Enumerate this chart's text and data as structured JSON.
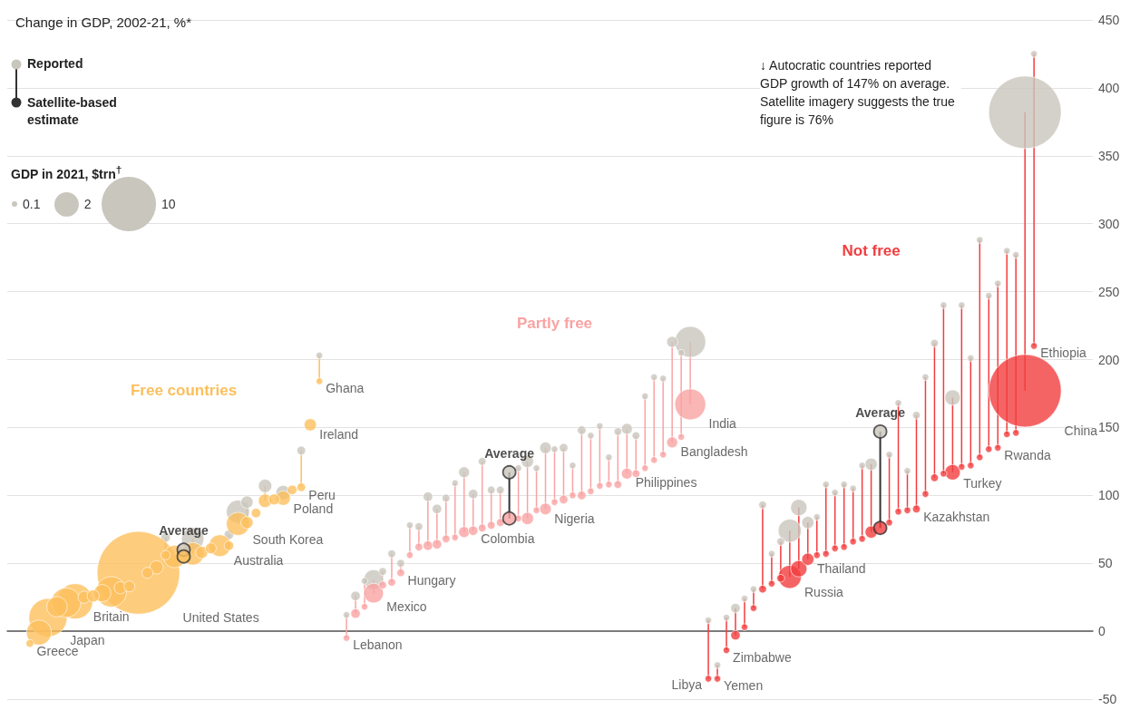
{
  "chart_data": {
    "type": "bubble",
    "title": "Change in GDP, 2002-21, %*",
    "legend_title": "GDP in 2021, $trn$^{†}$",
    "size_legend": [
      0.1,
      2,
      10
    ],
    "annotations": [
      "↓ Autocratic countries reported GDP growth of 147% on average. Satellite imagery suggests the true figure is 76%",
      "Free countries",
      "Partly free",
      "Not free",
      "Greece",
      "Japan",
      "Britain",
      "United States",
      "Average",
      "Australia",
      "South Korea",
      "Poland",
      "Peru",
      "Ireland",
      "Ghana",
      "Lebanon",
      "Mexico",
      "Hungary",
      "Colombia",
      "Average",
      "Nigeria",
      "Philippines",
      "Bangladesh",
      "India",
      "Libya",
      "Yemen",
      "Zimbabwe",
      "Russia",
      "Thailand",
      "Average",
      "Kazakhstan",
      "Turkey",
      "Rwanda",
      "China",
      "Ethiopia",
      "Satellite-based estimate"
    ],
    "categories": [
      null,
      null,
      null,
      null,
      null,
      null,
      null,
      null,
      null,
      null,
      null,
      null,
      null,
      null,
      null,
      null,
      null,
      null,
      null,
      null,
      null,
      null,
      null,
      null,
      null,
      null,
      null,
      null,
      null,
      null,
      null,
      null,
      null,
      null,
      null,
      null,
      null,
      null,
      null,
      null,
      null,
      null,
      null,
      null,
      null,
      null,
      null,
      null,
      null,
      null,
      null,
      null,
      null,
      null,
      null,
      null,
      null,
      null,
      null,
      null,
      null,
      null,
      null,
      null,
      null,
      null,
      null,
      null,
      null,
      null,
      null,
      null,
      null,
      null,
      null,
      null,
      null,
      null,
      null,
      null,
      null,
      null,
      null,
      null,
      null,
      null,
      null,
      null,
      null,
      null,
      null,
      null,
      null,
      null,
      null,
      null,
      null,
      null,
      null,
      null,
      null,
      null,
      null,
      null,
      null,
      null,
      null,
      null,
      null,
      null,
      null,
      null,
      null,
      null,
      null,
      null,
      null,
      null,
      null,
      null
    ],
    "series": [
      {
        "name": "Reported",
        "color": "#c9c6bd",
        "values": [
          null,
          null,
          null,
          null,
          null,
          null,
          null,
          null,
          null,
          null,
          null,
          null,
          null,
          null,
          null,
          null,
          null,
          69,
          null,
          null,
          68,
          null,
          null,
          null,
          71,
          88,
          95,
          null,
          107,
          null,
          102,
          null,
          133,
          null,
          203,
          null,
          null,
          12,
          26,
          37,
          38,
          44,
          57,
          50,
          78,
          77,
          99,
          90,
          98,
          109,
          117,
          101,
          125,
          104,
          104,
          null,
          120,
          125,
          120,
          135,
          134,
          135,
          122,
          148,
          144,
          151,
          128,
          147,
          149,
          144,
          173,
          187,
          186,
          213,
          205,
          213,
          null,
          8,
          -25,
          10,
          17,
          24,
          31,
          93,
          57,
          66,
          74,
          91,
          80,
          84,
          108,
          102,
          108,
          105,
          122,
          123,
          null,
          130,
          168,
          118,
          159,
          187,
          212,
          240,
          172,
          240,
          201,
          288,
          247,
          256,
          280,
          277,
          382,
          425,
          null,
          null,
          null,
          null,
          null,
          null
        ],
        "sizes": [
          null,
          null,
          null,
          null,
          null,
          null,
          null,
          null,
          null,
          null,
          null,
          null,
          null,
          null,
          null,
          null,
          null,
          0.3,
          null,
          null,
          1.7,
          null,
          null,
          null,
          0.3,
          1.8,
          0.5,
          null,
          0.6,
          null,
          0.7,
          null,
          0.25,
          null,
          0.15,
          null,
          null,
          0.15,
          0.3,
          0.15,
          1.3,
          0.2,
          0.2,
          0.2,
          0.15,
          0.2,
          0.3,
          0.3,
          0.2,
          0.15,
          0.4,
          0.3,
          0.2,
          0.2,
          0.2,
          null,
          0.15,
          0.5,
          0.15,
          0.45,
          0.15,
          0.25,
          0.15,
          0.25,
          0.15,
          0.15,
          0.15,
          0.2,
          0.4,
          0.2,
          0.15,
          0.15,
          0.15,
          0.4,
          0.15,
          3.2,
          null,
          0.15,
          0.15,
          0.15,
          0.3,
          0.15,
          0.15,
          0.2,
          0.15,
          0.2,
          1.8,
          0.9,
          0.5,
          0.15,
          0.15,
          0.15,
          0.15,
          0.15,
          0.15,
          0.5,
          null,
          0.15,
          0.15,
          0.15,
          0.2,
          0.15,
          0.2,
          0.15,
          0.8,
          0.15,
          0.15,
          0.15,
          0.15,
          0.15,
          0.15,
          0.15,
          17.7,
          0.15,
          null,
          null,
          null,
          null,
          null,
          null
        ]
      },
      {
        "values": [
          null,
          null,
          -9,
          -1,
          10,
          18,
          21,
          22,
          25,
          26,
          28,
          29,
          32,
          33,
          43,
          43,
          47,
          56,
          55,
          null,
          57,
          58,
          61,
          63,
          63,
          79,
          80,
          87,
          96,
          97,
          98,
          104,
          106,
          152,
          184,
          null,
          null,
          -5,
          13,
          18,
          28,
          34,
          36,
          43,
          56,
          62,
          63,
          64,
          68,
          69,
          73,
          74,
          76,
          78,
          80,
          null,
          83,
          83,
          89,
          90,
          95,
          97,
          100,
          100,
          103,
          107,
          108,
          108,
          116,
          116,
          120,
          126,
          130,
          139,
          143,
          167,
          null,
          -35,
          -35,
          -14,
          -3,
          3,
          17,
          31,
          35,
          39,
          40,
          46,
          53,
          56,
          57,
          61,
          62,
          66,
          68,
          73,
          null,
          80,
          88,
          89,
          90,
          101,
          113,
          116,
          117,
          121,
          122,
          128,
          134,
          135,
          145,
          146,
          177,
          210,
          null,
          null,
          null,
          null,
          null,
          null
        ],
        "sizes": [
          null,
          null,
          0.2,
          2.1,
          4.9,
          1.4,
          2.9,
          4.2,
          0.5,
          0.5,
          1.0,
          3.1,
          0.5,
          0.4,
          23,
          0.4,
          0.6,
          0.3,
          1.7,
          null,
          1.7,
          0.5,
          0.4,
          1.6,
          0.3,
          1.8,
          0.5,
          0.3,
          0.6,
          0.4,
          0.7,
          0.3,
          0.25,
          0.5,
          0.15,
          null,
          null,
          0.15,
          0.3,
          0.15,
          1.3,
          0.2,
          0.2,
          0.2,
          0.15,
          0.2,
          0.3,
          0.3,
          0.2,
          0.15,
          0.4,
          0.3,
          0.2,
          0.2,
          0.2,
          null,
          0.15,
          0.5,
          0.15,
          0.45,
          0.15,
          0.25,
          0.15,
          0.25,
          0.15,
          0.15,
          0.15,
          0.2,
          0.4,
          0.2,
          0.15,
          0.15,
          0.15,
          0.4,
          0.15,
          3.2,
          null,
          0.15,
          0.15,
          0.15,
          0.3,
          0.15,
          0.15,
          0.2,
          0.15,
          0.2,
          1.8,
          0.9,
          0.5,
          0.15,
          0.15,
          0.15,
          0.15,
          0.15,
          0.15,
          0.5,
          null,
          0.15,
          0.15,
          0.15,
          0.2,
          0.15,
          0.2,
          0.15,
          0.8,
          0.15,
          0.15,
          0.15,
          0.15,
          0.15,
          0.15,
          0.15,
          17.7,
          0.15,
          null,
          null,
          null,
          null,
          null,
          null
        ],
        "colors": [
          null,
          null,
          "#fcbf5c",
          "#fcbf5c",
          "#fcbf5c",
          "#fcbf5c",
          "#fcbf5c",
          "#fcbf5c",
          "#fcbf5c",
          "#fcbf5c",
          "#fcbf5c",
          "#fcbf5c",
          "#fcbf5c",
          "#fcbf5c",
          "#fcbf5c",
          "#fcbf5c",
          "#fcbf5c",
          "#fcbf5c",
          "#fcbf5c",
          null,
          "#fcbf5c",
          "#fcbf5c",
          "#fcbf5c",
          "#fcbf5c",
          "#fcbf5c",
          "#fcbf5c",
          "#fcbf5c",
          "#fcbf5c",
          "#fcbf5c",
          "#fcbf5c",
          "#fcbf5c",
          "#fcbf5c",
          "#fcbf5c",
          "#fcbf5c",
          "#fcbf5c",
          null,
          null,
          "#f9a3a3",
          "#f9a3a3",
          "#f9a3a3",
          "#f9a3a3",
          "#f9a3a3",
          "#f9a3a3",
          "#f9a3a3",
          "#f9a3a3",
          "#f9a3a3",
          "#f9a3a3",
          "#f9a3a3",
          "#f9a3a3",
          "#f9a3a3",
          "#f9a3a3",
          "#f9a3a3",
          "#f9a3a3",
          "#f9a3a3",
          "#f9a3a3",
          null,
          "#f9a3a3",
          "#f9a3a3",
          "#f9a3a3",
          "#f9a3a3",
          "#f9a3a3",
          "#f9a3a3",
          "#f9a3a3",
          "#f9a3a3",
          "#f9a3a3",
          "#f9a3a3",
          "#f9a3a3",
          "#f9a3a3",
          "#f9a3a3",
          "#f9a3a3",
          "#f9a3a3",
          "#f9a3a3",
          "#f9a3a3",
          "#f9a3a3",
          "#f9a3a3",
          "#f9a3a3",
          null,
          "#f23d3f",
          "#f23d3f",
          "#f23d3f",
          "#f23d3f",
          "#f23d3f",
          "#f23d3f",
          "#f23d3f",
          "#f23d3f",
          "#f23d3f",
          "#f23d3f",
          "#f23d3f",
          "#f23d3f",
          "#f23d3f",
          "#f23d3f",
          "#f23d3f",
          "#f23d3f",
          "#f23d3f",
          "#f23d3f",
          "#f23d3f",
          null,
          "#f23d3f",
          "#f23d3f",
          "#f23d3f",
          "#f23d3f",
          "#f23d3f",
          "#f23d3f",
          "#f23d3f",
          "#f23d3f",
          "#f23d3f",
          "#f23d3f",
          "#f23d3f",
          "#f23d3f",
          "#f23d3f",
          "#f23d3f",
          "#f23d3f",
          "#f23d3f",
          "#f23d3f",
          null,
          null,
          null,
          null,
          null,
          null
        ]
      },
      {
        "type": "scatter",
        "color": "#c9c6bd",
        "values": [
          null,
          null,
          null,
          null,
          null,
          null,
          null,
          null,
          null,
          null,
          null,
          null,
          null,
          null,
          null,
          null,
          null,
          null,
          null,
          60,
          null,
          null,
          null,
          null,
          null,
          null,
          null,
          null,
          null,
          null,
          null,
          null,
          null,
          null,
          null,
          null,
          null,
          null,
          null,
          null,
          null,
          null,
          null,
          null,
          null,
          null,
          null,
          null,
          null,
          null,
          null,
          null,
          null,
          null,
          null,
          117,
          null,
          null,
          null,
          null,
          null,
          null,
          null,
          null,
          null,
          null,
          null,
          null,
          null,
          null,
          null,
          null,
          null,
          null,
          null,
          null,
          null,
          null,
          null,
          null,
          null,
          null,
          null,
          null,
          null,
          null,
          null,
          null,
          null,
          null,
          null,
          null,
          null,
          null,
          null,
          null,
          147,
          null,
          null,
          null,
          null,
          null,
          null,
          null,
          null,
          null,
          null,
          null,
          null,
          null,
          null,
          null,
          null,
          null,
          null,
          null,
          null,
          null,
          null,
          null
        ]
      },
      {
        "type": "scatter",
        "values": [
          null,
          null,
          null,
          null,
          null,
          null,
          null,
          null,
          null,
          null,
          null,
          null,
          null,
          null,
          null,
          null,
          null,
          null,
          null,
          55,
          null,
          null,
          null,
          null,
          null,
          null,
          null,
          null,
          null,
          null,
          null,
          null,
          null,
          null,
          null,
          null,
          null,
          null,
          null,
          null,
          null,
          null,
          null,
          null,
          null,
          null,
          null,
          null,
          null,
          null,
          null,
          null,
          null,
          null,
          null,
          83,
          null,
          null,
          null,
          null,
          null,
          null,
          null,
          null,
          null,
          null,
          null,
          null,
          null,
          null,
          null,
          null,
          null,
          null,
          null,
          null,
          null,
          null,
          null,
          null,
          null,
          null,
          null,
          null,
          null,
          null,
          null,
          null,
          null,
          null,
          null,
          null,
          null,
          null,
          null,
          null,
          76,
          null,
          null,
          null,
          null,
          null,
          null,
          null,
          null,
          null,
          null,
          null,
          null,
          null,
          null,
          null,
          null,
          null,
          null,
          null,
          null,
          null,
          null,
          null
        ],
        "colors": [
          null,
          null,
          null,
          null,
          null,
          null,
          null,
          null,
          null,
          null,
          null,
          null,
          null,
          null,
          null,
          null,
          null,
          null,
          null,
          "#fcbf5c",
          null,
          null,
          null,
          null,
          null,
          null,
          null,
          null,
          null,
          null,
          null,
          null,
          null,
          null,
          null,
          null,
          null,
          null,
          null,
          null,
          null,
          null,
          null,
          null,
          null,
          null,
          null,
          null,
          null,
          null,
          null,
          null,
          null,
          null,
          null,
          "#f9a3a3",
          null,
          null,
          null,
          null,
          null,
          null,
          null,
          null,
          null,
          null,
          null,
          null,
          null,
          null,
          null,
          null,
          null,
          null,
          null,
          null,
          null,
          null,
          null,
          null,
          null,
          null,
          null,
          null,
          null,
          null,
          null,
          null,
          null,
          null,
          null,
          null,
          null,
          null,
          null,
          null,
          "#f23d3f",
          null,
          null,
          null,
          null,
          null,
          null,
          null,
          null,
          null,
          null,
          null,
          null,
          null,
          null,
          null,
          null,
          null,
          null,
          null,
          null,
          null,
          null,
          null
        ]
      }
    ],
    "ylim": [
      -50,
      450
    ],
    "yticks": [
      -50,
      0,
      50,
      100,
      150,
      200,
      250,
      300,
      350,
      400,
      450
    ],
    "grid": "y",
    "legend": "top left",
    "tick_labels": "y"
  }
}
